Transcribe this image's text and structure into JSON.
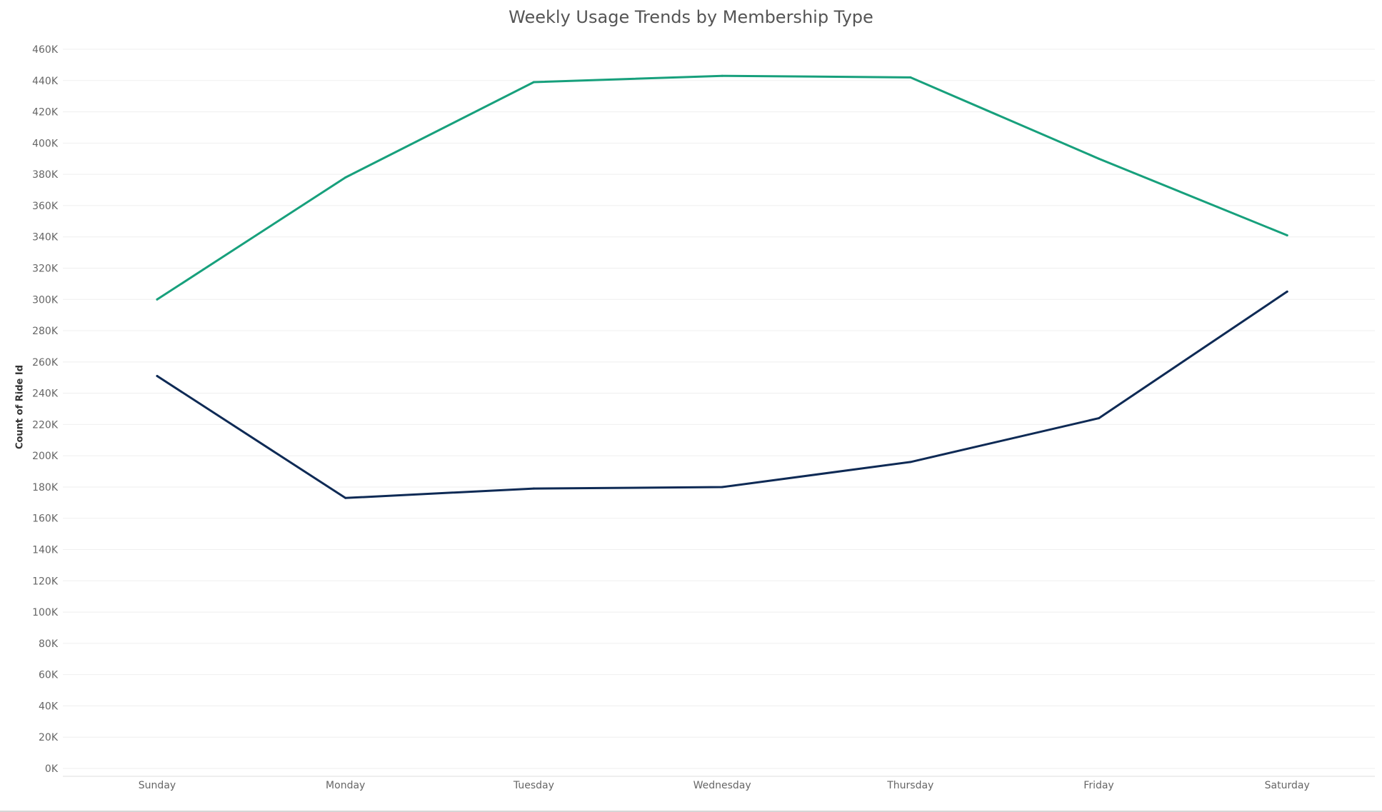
{
  "chart_data": {
    "type": "line",
    "title": "Weekly Usage Trends by Membership Type",
    "xlabel": "",
    "ylabel": "Count of Ride Id",
    "categories": [
      "Sunday",
      "Monday",
      "Tuesday",
      "Wednesday",
      "Thursday",
      "Friday",
      "Saturday"
    ],
    "ylim": [
      0,
      460000
    ],
    "yticks": [
      0,
      20000,
      40000,
      60000,
      80000,
      100000,
      120000,
      140000,
      160000,
      180000,
      200000,
      220000,
      240000,
      260000,
      280000,
      300000,
      320000,
      340000,
      360000,
      380000,
      400000,
      420000,
      440000,
      460000
    ],
    "ytick_labels": [
      "0K",
      "20K",
      "40K",
      "60K",
      "80K",
      "100K",
      "120K",
      "140K",
      "160K",
      "180K",
      "200K",
      "220K",
      "240K",
      "260K",
      "280K",
      "300K",
      "320K",
      "340K",
      "360K",
      "380K",
      "400K",
      "420K",
      "440K",
      "460K"
    ],
    "grid": true,
    "legend": "none",
    "series": [
      {
        "values": [
          300000,
          378000,
          439000,
          443000,
          442000,
          390000,
          341000
        ],
        "color": "#17a07c"
      },
      {
        "values": [
          251000,
          173000,
          179000,
          180000,
          196000,
          224000,
          305000
        ],
        "color": "#0e2a55"
      }
    ]
  }
}
